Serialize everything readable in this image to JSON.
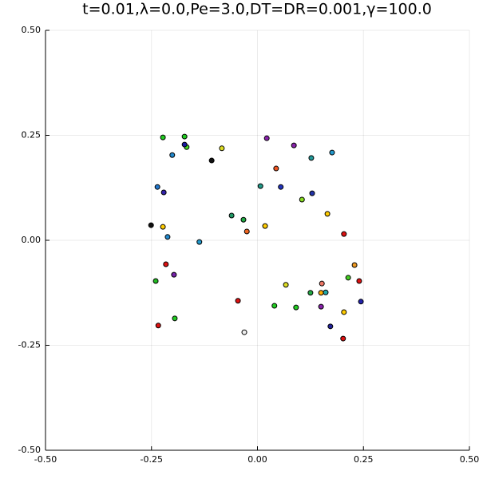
{
  "chart_data": {
    "type": "scatter",
    "title": "t=0.01,λ=0.0,Pe=3.0,DT=DR=0.001,γ=100.0",
    "x": [
      -0.223,
      -0.172,
      -0.167,
      -0.172,
      -0.201,
      -0.084,
      -0.108,
      -0.236,
      -0.221,
      -0.251,
      -0.223,
      -0.212,
      -0.137,
      -0.216,
      -0.24,
      -0.197,
      -0.195,
      -0.234,
      -0.061,
      -0.033,
      -0.025,
      -0.046,
      -0.031,
      0.022,
      0.044,
      0.086,
      0.127,
      0.176,
      0.007,
      0.055,
      0.129,
      0.105,
      0.018,
      0.165,
      0.204,
      0.229,
      0.214,
      0.24,
      0.067,
      0.152,
      0.15,
      0.161,
      0.125,
      0.04,
      0.091,
      0.15,
      0.244,
      0.204,
      0.172,
      0.202
    ],
    "values": [
      0.245,
      0.247,
      0.222,
      0.228,
      0.203,
      0.219,
      0.19,
      0.127,
      0.114,
      0.036,
      0.032,
      0.008,
      -0.004,
      -0.057,
      -0.097,
      -0.082,
      -0.186,
      -0.203,
      0.059,
      0.049,
      0.021,
      -0.144,
      -0.219,
      0.243,
      0.171,
      0.226,
      0.196,
      0.209,
      0.129,
      0.127,
      0.112,
      0.097,
      0.034,
      0.063,
      0.015,
      -0.059,
      -0.089,
      -0.097,
      -0.106,
      -0.103,
      -0.125,
      -0.124,
      -0.125,
      -0.156,
      -0.16,
      -0.158,
      -0.146,
      -0.171,
      -0.205,
      -0.234
    ],
    "colors": [
      "#22cc22",
      "#22cc22",
      "#44dd22",
      "#1a1aa0",
      "#2288cc",
      "#dddd22",
      "#111111",
      "#2277cc",
      "#3322aa",
      "#111111",
      "#ffcc00",
      "#2288cc",
      "#2299cc",
      "#dd1111",
      "#22bb22",
      "#7722aa",
      "#22cc22",
      "#dd1111",
      "#229966",
      "#22aa44",
      "#ee6622",
      "#dd1111",
      "#eeeeee",
      "#8822aa",
      "#ee5522",
      "#8822aa",
      "#229999",
      "#2299cc",
      "#229988",
      "#2233bb",
      "#2233aa",
      "#88dd22",
      "#ffcc00",
      "#ffcc00",
      "#dd1111",
      "#ee9922",
      "#44cc22",
      "#dd1111",
      "#dddd22",
      "#ee7766",
      "#ffaa00",
      "#22aaaa",
      "#22aa44",
      "#22cc22",
      "#22cc22",
      "#8822aa",
      "#2222aa",
      "#ffcc00",
      "#222299",
      "#dd1111"
    ],
    "xlim": [
      -0.5,
      0.5
    ],
    "ylim": [
      -0.5,
      0.5
    ],
    "xticks": [
      {
        "value": -0.5,
        "label": "-0.50"
      },
      {
        "value": -0.25,
        "label": "-0.25"
      },
      {
        "value": 0,
        "label": "0.00"
      },
      {
        "value": 0.25,
        "label": "0.25"
      },
      {
        "value": 0.5,
        "label": "0.50"
      }
    ],
    "yticks": [
      {
        "value": -0.5,
        "label": "-0.50"
      },
      {
        "value": -0.25,
        "label": "-0.25"
      },
      {
        "value": 0,
        "label": "0.00"
      },
      {
        "value": 0.25,
        "label": "0.25"
      },
      {
        "value": 0.5,
        "label": "0.50"
      }
    ],
    "grid": true
  }
}
